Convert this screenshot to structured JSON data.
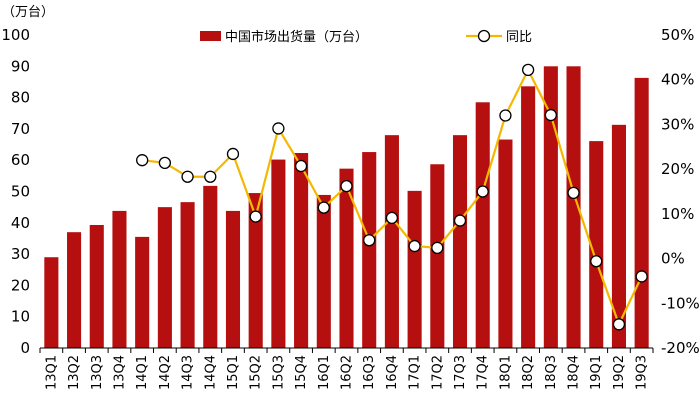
{
  "chart_data": {
    "type": "bar+line",
    "y_left_unit": "（万台）",
    "categories": [
      "13Q1",
      "13Q2",
      "13Q3",
      "13Q4",
      "14Q1",
      "14Q2",
      "14Q3",
      "14Q4",
      "15Q1",
      "15Q2",
      "15Q3",
      "15Q4",
      "16Q1",
      "16Q2",
      "16Q3",
      "16Q4",
      "17Q1",
      "17Q2",
      "17Q3",
      "17Q4",
      "18Q1",
      "18Q2",
      "18Q3",
      "18Q4",
      "19Q1",
      "19Q2",
      "19Q3"
    ],
    "series": [
      {
        "name": "中国市场出货量（万台）",
        "type": "bar",
        "axis": "left",
        "color": "#B50F0F",
        "values": [
          29,
          37,
          39.3,
          43.8,
          35.5,
          45,
          46.6,
          51.8,
          43.8,
          49.5,
          60.2,
          62.3,
          48.9,
          57.3,
          62.6,
          68,
          50.2,
          58.7,
          68,
          78.5,
          66.6,
          83.6,
          90,
          90,
          66.1,
          71.3,
          86.3
        ]
      },
      {
        "name": "同比",
        "type": "line",
        "axis": "right",
        "color": "#F5B800",
        "values": [
          null,
          null,
          null,
          null,
          22,
          21.4,
          18.3,
          18.3,
          23.4,
          9.4,
          29.1,
          20.7,
          11.4,
          16.2,
          4.1,
          9.1,
          2.8,
          2.4,
          8.5,
          15,
          32,
          42.2,
          32.1,
          14.7,
          -0.6,
          -14.7,
          -4
        ]
      }
    ],
    "y_left": {
      "min": 0,
      "max": 100,
      "step": 10
    },
    "y_right": {
      "min": -20,
      "max": 50,
      "step": 10,
      "format": "percent"
    },
    "legend_position": "top"
  }
}
